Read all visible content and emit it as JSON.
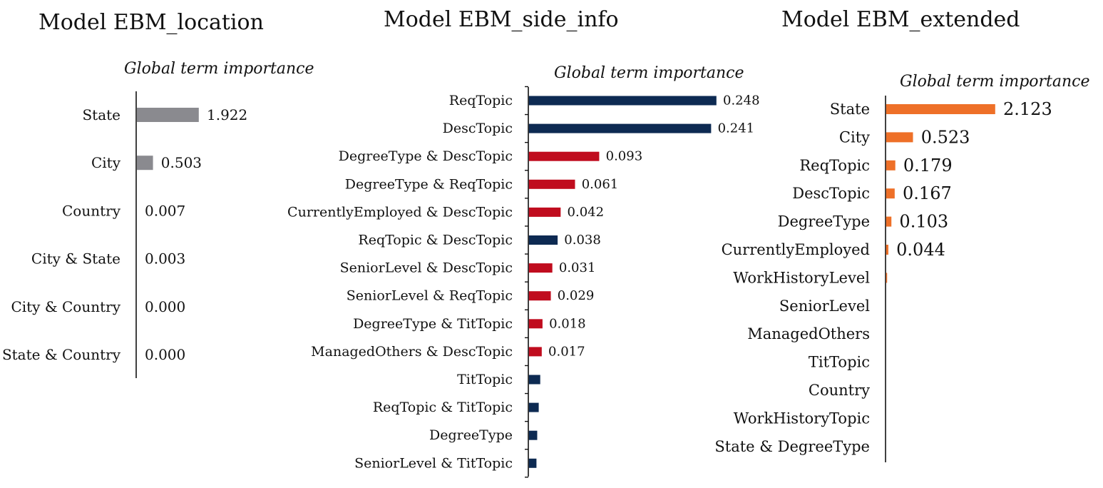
{
  "chart_data": [
    {
      "type": "bar",
      "orientation": "horizontal",
      "title": "Model EBM_location",
      "subtitle": "Global term importance",
      "categories": [
        "State",
        "City",
        "Country",
        "City & State",
        "City & Country",
        "State & Country"
      ],
      "values": [
        1.922,
        0.503,
        0.007,
        0.003,
        0.0,
        0.0
      ],
      "value_labels": [
        "1.922",
        "0.503",
        "0.007",
        "0.003",
        "0.000",
        "0.000"
      ],
      "bar_colors": [
        "#8a8a8f",
        "#8a8a8f",
        "#8a8a8f",
        "#8a8a8f",
        "#8a8a8f",
        "#8a8a8f"
      ],
      "xlim": [
        0,
        1.922
      ]
    },
    {
      "type": "bar",
      "orientation": "horizontal",
      "title": "Model EBM_side_info",
      "subtitle": "Global term importance",
      "categories": [
        "ReqTopic",
        "DescTopic",
        "DegreeType & DescTopic",
        "DegreeType & ReqTopic",
        "CurrentlyEmployed & DescTopic",
        "ReqTopic & DescTopic",
        "SeniorLevel & DescTopic",
        "SeniorLevel & ReqTopic",
        "DegreeType & TitTopic",
        "ManagedOthers & DescTopic",
        "TitTopic",
        "ReqTopic & TitTopic",
        "DegreeType",
        "SeniorLevel & TitTopic"
      ],
      "values": [
        0.248,
        0.241,
        0.093,
        0.061,
        0.042,
        0.038,
        0.031,
        0.029,
        0.018,
        0.017,
        0.015,
        0.013,
        0.011,
        0.01
      ],
      "value_labels": [
        "0.248",
        "0.241",
        "0.093",
        "0.061",
        "0.042",
        "0.038",
        "0.031",
        "0.029",
        "0.018",
        "0.017",
        "",
        "",
        "",
        ""
      ],
      "bar_colors": [
        "#0d2a52",
        "#0d2a52",
        "#c00c1e",
        "#c00c1e",
        "#c00c1e",
        "#0d2a52",
        "#c00c1e",
        "#c00c1e",
        "#c00c1e",
        "#c00c1e",
        "#0d2a52",
        "#0d2a52",
        "#0d2a52",
        "#0d2a52"
      ],
      "xlim": [
        0,
        0.248
      ]
    },
    {
      "type": "bar",
      "orientation": "horizontal",
      "title": "Model EBM_extended",
      "subtitle": "Global term importance",
      "categories": [
        "State",
        "City",
        "ReqTopic",
        "DescTopic",
        "DegreeType",
        "CurrentlyEmployed",
        "WorkHistoryLevel",
        "SeniorLevel",
        "ManagedOthers",
        "TitTopic",
        "Country",
        "WorkHistoryTopic",
        "State & DegreeType"
      ],
      "values": [
        2.123,
        0.523,
        0.179,
        0.167,
        0.103,
        0.044,
        0.02,
        0,
        0,
        0,
        0,
        0,
        0
      ],
      "value_labels": [
        "2.123",
        "0.523",
        "0.179",
        "0.167",
        "0.103",
        "0.044",
        "",
        "",
        "",
        "",
        "",
        "",
        ""
      ],
      "bar_colors": [
        "#ee7028",
        "#ee7028",
        "#ee7028",
        "#ee7028",
        "#ee7028",
        "#ee7028",
        "#ee7028",
        "#ee7028",
        "#ee7028",
        "#ee7028",
        "#ee7028",
        "#ee7028",
        "#ee7028"
      ],
      "xlim": [
        0,
        2.123
      ]
    }
  ]
}
